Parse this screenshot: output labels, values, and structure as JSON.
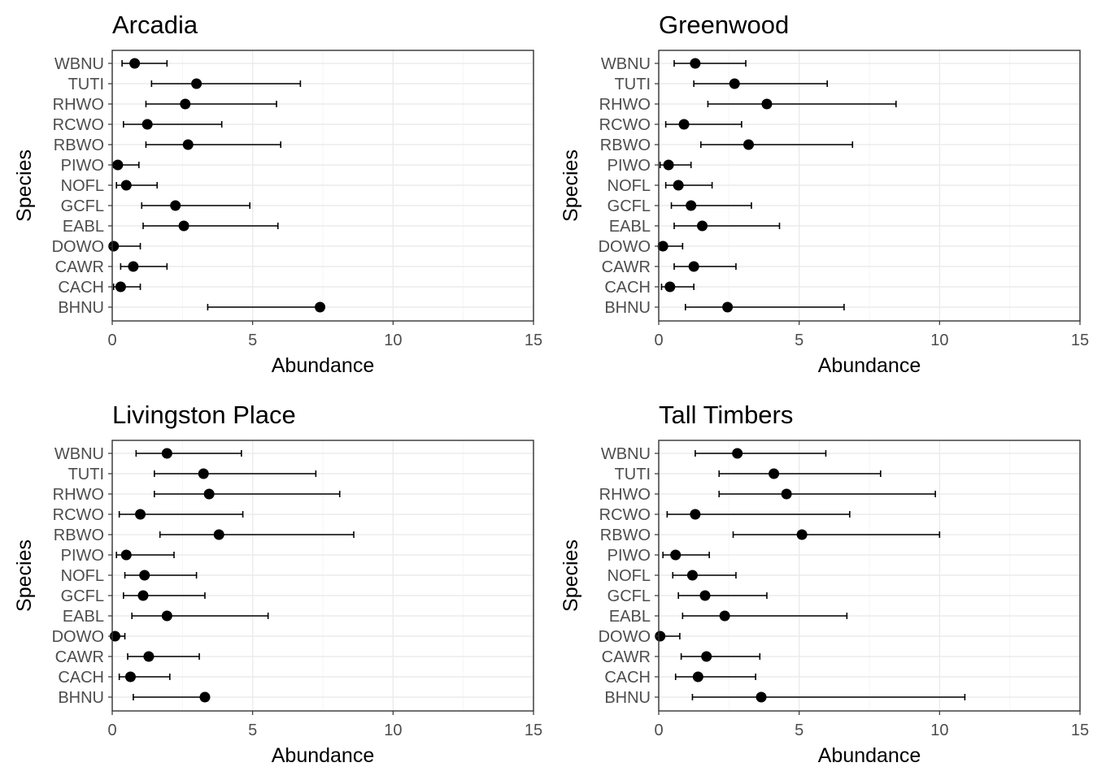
{
  "chart_data": [
    {
      "type": "scatter",
      "title": "Arcadia",
      "xlabel": "Abundance",
      "ylabel": "Species",
      "xlim": [
        0,
        15
      ],
      "xticks": [
        0,
        5,
        10,
        15
      ],
      "grid": true,
      "categories": [
        "WBNU",
        "TUTI",
        "RHWO",
        "RCWO",
        "RBWO",
        "PIWO",
        "NOFL",
        "GCFL",
        "EABL",
        "DOWO",
        "CAWR",
        "CACH",
        "BHNU"
      ],
      "estimate": [
        0.8,
        3.0,
        2.6,
        1.25,
        2.7,
        0.2,
        0.5,
        2.25,
        2.55,
        0.05,
        0.75,
        0.3,
        7.4
      ],
      "lower": [
        0.35,
        1.4,
        1.2,
        0.4,
        1.2,
        0.05,
        0.15,
        1.05,
        1.1,
        0.0,
        0.3,
        0.05,
        3.4
      ],
      "upper": [
        1.95,
        6.7,
        5.85,
        3.9,
        6.0,
        0.95,
        1.6,
        4.9,
        5.9,
        1.0,
        1.95,
        1.0,
        7.4
      ]
    },
    {
      "type": "scatter",
      "title": "Greenwood",
      "xlabel": "Abundance",
      "ylabel": "Species",
      "xlim": [
        0,
        15
      ],
      "xticks": [
        0,
        5,
        10,
        15
      ],
      "grid": true,
      "categories": [
        "WBNU",
        "TUTI",
        "RHWO",
        "RCWO",
        "RBWO",
        "PIWO",
        "NOFL",
        "GCFL",
        "EABL",
        "DOWO",
        "CAWR",
        "CACH",
        "BHNU"
      ],
      "estimate": [
        1.3,
        2.7,
        3.85,
        0.9,
        3.2,
        0.35,
        0.7,
        1.15,
        1.55,
        0.15,
        1.25,
        0.4,
        2.45
      ],
      "lower": [
        0.55,
        1.25,
        1.75,
        0.25,
        1.5,
        0.05,
        0.25,
        0.45,
        0.55,
        0.0,
        0.55,
        0.1,
        0.95
      ],
      "upper": [
        3.1,
        6.0,
        8.45,
        2.95,
        6.9,
        1.15,
        1.9,
        3.3,
        4.3,
        0.85,
        2.75,
        1.25,
        6.6
      ]
    },
    {
      "type": "scatter",
      "title": "Livingston Place",
      "xlabel": "Abundance",
      "ylabel": "Species",
      "xlim": [
        0,
        15
      ],
      "xticks": [
        0,
        5,
        10,
        15
      ],
      "grid": true,
      "categories": [
        "WBNU",
        "TUTI",
        "RHWO",
        "RCWO",
        "RBWO",
        "PIWO",
        "NOFL",
        "GCFL",
        "EABL",
        "DOWO",
        "CAWR",
        "CACH",
        "BHNU"
      ],
      "estimate": [
        1.95,
        3.25,
        3.45,
        1.0,
        3.8,
        0.5,
        1.15,
        1.1,
        1.95,
        0.1,
        1.3,
        0.65,
        3.3
      ],
      "lower": [
        0.85,
        1.5,
        1.5,
        0.25,
        1.7,
        0.15,
        0.45,
        0.4,
        0.7,
        0.0,
        0.55,
        0.25,
        0.75
      ],
      "upper": [
        4.6,
        7.25,
        8.1,
        4.65,
        8.6,
        2.2,
        3.0,
        3.3,
        5.55,
        0.45,
        3.1,
        2.05,
        3.3
      ]
    },
    {
      "type": "scatter",
      "title": "Tall Timbers",
      "xlabel": "Abundance",
      "ylabel": "Species",
      "xlim": [
        0,
        15
      ],
      "xticks": [
        0,
        5,
        10,
        15
      ],
      "grid": true,
      "categories": [
        "WBNU",
        "TUTI",
        "RHWO",
        "RCWO",
        "RBWO",
        "PIWO",
        "NOFL",
        "GCFL",
        "EABL",
        "DOWO",
        "CAWR",
        "CACH",
        "BHNU"
      ],
      "estimate": [
        2.8,
        4.1,
        4.55,
        1.3,
        5.1,
        0.6,
        1.2,
        1.65,
        2.35,
        0.05,
        1.7,
        1.4,
        3.65
      ],
      "lower": [
        1.3,
        2.15,
        2.15,
        0.3,
        2.65,
        0.15,
        0.5,
        0.7,
        0.85,
        0.0,
        0.8,
        0.6,
        1.2
      ],
      "upper": [
        5.95,
        7.9,
        9.85,
        6.8,
        10.0,
        1.8,
        2.75,
        3.85,
        6.7,
        0.75,
        3.6,
        3.45,
        10.9
      ]
    }
  ]
}
